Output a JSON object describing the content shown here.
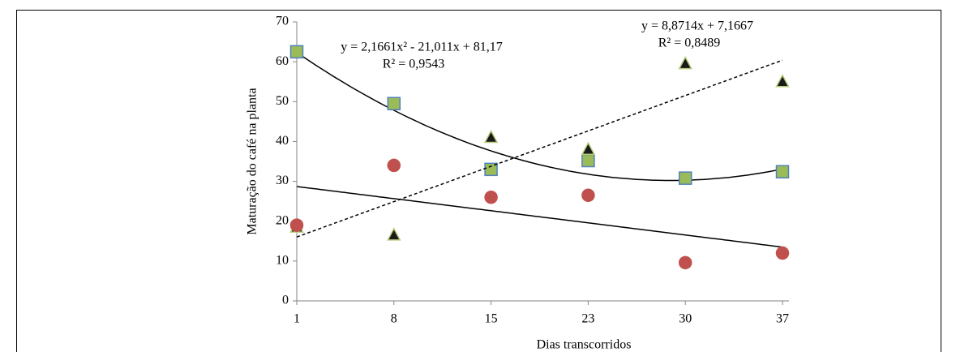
{
  "chart_data": {
    "type": "scatter",
    "xlabel": "Dias transcorridos",
    "ylabel": "Maturação do café na planta",
    "categories": [
      "1",
      "8",
      "15",
      "23",
      "30",
      "37"
    ],
    "ylim": [
      0,
      70
    ],
    "yticks": [
      0,
      10,
      20,
      30,
      40,
      50,
      60,
      70
    ],
    "series": [
      {
        "marker": "square",
        "color": "#9bbb59",
        "edge": "#4f81bd",
        "values": [
          62.5,
          49.5,
          33,
          35.2,
          30.8,
          32.4
        ],
        "trendline": {
          "kind": "poly",
          "dash": false,
          "coefficients": [
            2.1661,
            -21.011,
            81.17
          ],
          "label": "y = 2,1661x² - 21,011x + 81,17",
          "r2_label": "R² = 0,9543"
        }
      },
      {
        "marker": "triangle",
        "color": "#1a1a1a",
        "edge": "#b5cc7a",
        "values": [
          18.5,
          16.5,
          41,
          38,
          59.5,
          55
        ],
        "trendline": {
          "kind": "poly",
          "dash": true,
          "coefficients": [
            8.8714,
            7.1667
          ],
          "label": "y = 8,8714x + 7,1667",
          "r2_label": "R² = 0,8489"
        }
      },
      {
        "marker": "circle",
        "color": "#c0504d",
        "edge": "#c0504d",
        "values": [
          19,
          34,
          26,
          26.5,
          9.6,
          12
        ],
        "trendline": {
          "kind": "poly",
          "dash": false,
          "coefficients": [
            -3.04,
            31.74
          ]
        }
      }
    ]
  }
}
